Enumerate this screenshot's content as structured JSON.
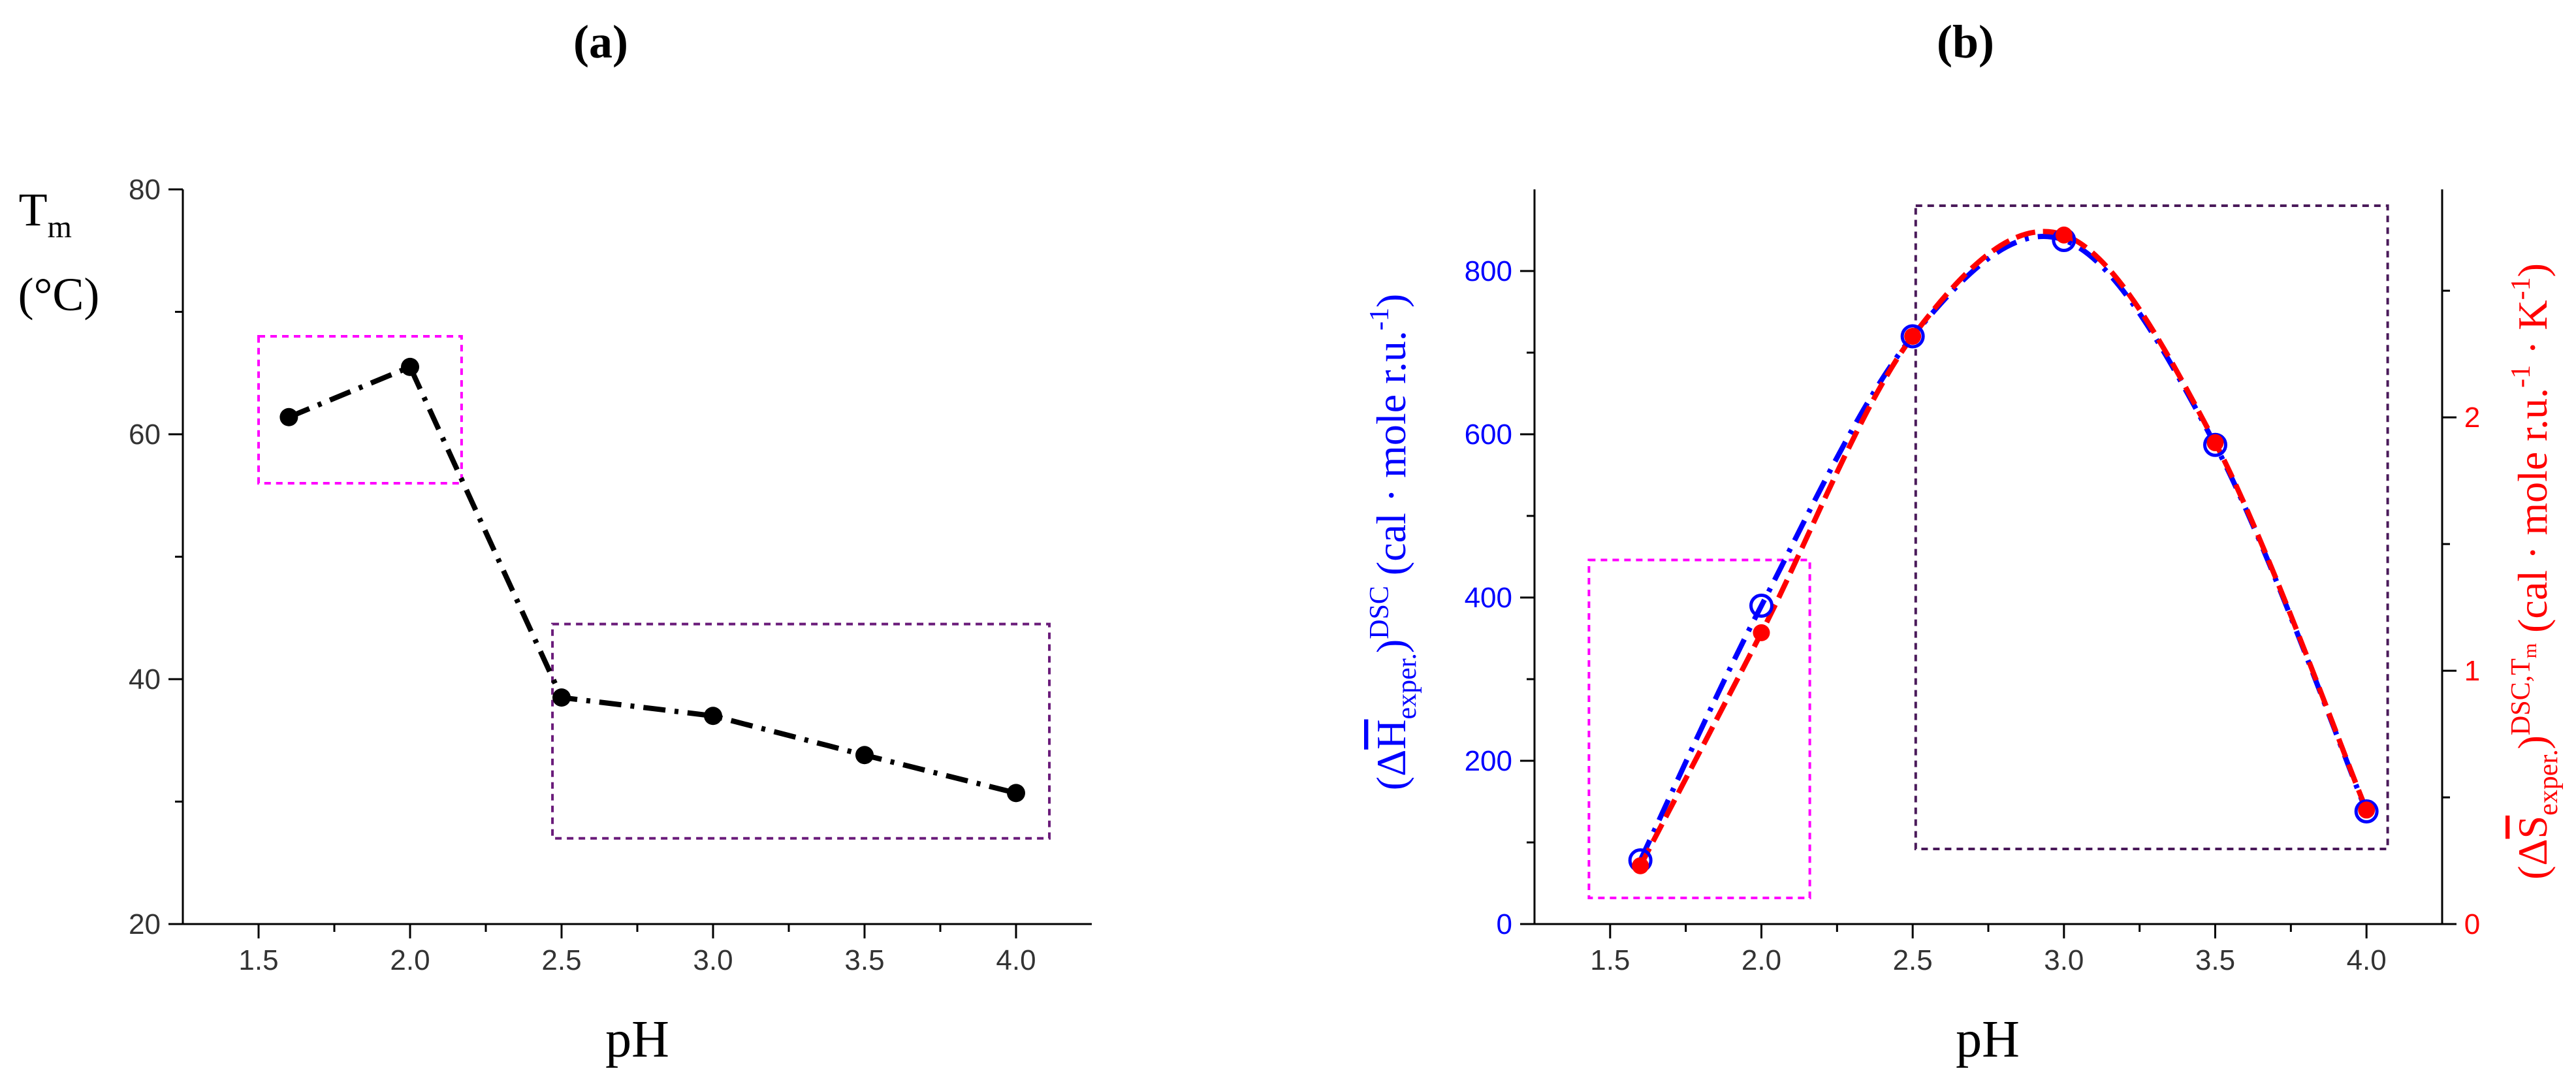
{
  "chart_data": [
    {
      "type": "line",
      "panel_label": "(a)",
      "xlabel": "pH",
      "ylabel_main": "T",
      "ylabel_sub": "m",
      "ylabel_unit": "(°C)",
      "xlim": [
        1.25,
        4.25
      ],
      "ylim": [
        20,
        80
      ],
      "xticks": [
        "1.5",
        "2.0",
        "2.5",
        "3.0",
        "3.5",
        "4.0"
      ],
      "yticks": [
        "20",
        "40",
        "60",
        "80"
      ],
      "series": [
        {
          "name": "Tm",
          "color": "#000000",
          "x": [
            1.6,
            2.0,
            2.5,
            3.0,
            3.5,
            4.0
          ],
          "y": [
            61.4,
            65.5,
            38.5,
            37.0,
            33.8,
            30.7
          ]
        }
      ],
      "highlight_boxes": [
        {
          "name": "low-ph-box",
          "color": "#ff00ff",
          "x_range": [
            1.5,
            2.17
          ],
          "y_range": [
            56,
            68
          ]
        },
        {
          "name": "high-ph-box",
          "color": "#6a1b7a",
          "x_range": [
            2.47,
            4.11
          ],
          "y_range": [
            27,
            44.5
          ]
        }
      ]
    },
    {
      "type": "line",
      "panel_label": "(b)",
      "xlabel": "pH",
      "ylabel_left": "(ΔH̄exper.)DSC (cal · mole r.u.-1)",
      "ylabel_left_parts": {
        "open": "(Δ",
        "symbol": "H",
        "sub": "exper.",
        "close": ")",
        "sup": "DSC",
        "unit": " (cal · mole r.u.",
        "unit_sup": "-1",
        "unit_close": ")"
      },
      "ylabel_right": "(ΔS̄exper.)DSC,Tm (cal · mole r.u.-1 · K-1)",
      "ylabel_right_parts": {
        "open": "(Δ",
        "symbol": "S",
        "sub": "exper.",
        "close": ")",
        "sup": "DSC,T",
        "sup_sub": "m",
        "unit": " (cal · mole r.u.",
        "unit_sup": "-1",
        "unit_mid": " · K",
        "unit_sup2": "-1",
        "unit_close": ")"
      },
      "xlim": [
        1.25,
        4.25
      ],
      "ylim_left": [
        0,
        900
      ],
      "ylim_right": [
        0,
        2.9
      ],
      "xticks": [
        "1.5",
        "2.0",
        "2.5",
        "3.0",
        "3.5",
        "4.0"
      ],
      "yticks_left": [
        "0",
        "200",
        "400",
        "600",
        "800"
      ],
      "yticks_right": [
        "0",
        "1",
        "2"
      ],
      "series": [
        {
          "name": "ΔH (DSC)",
          "color": "#0000ff",
          "axis": "left",
          "marker": "open-circle",
          "x": [
            1.6,
            2.0,
            2.5,
            3.0,
            3.5,
            4.0
          ],
          "y": [
            78,
            390,
            720,
            838,
            587,
            138
          ]
        },
        {
          "name": "ΔS (DSC,Tm)",
          "color": "#ff0000",
          "axis": "right",
          "marker": "filled-circle",
          "x": [
            1.6,
            2.0,
            2.5,
            3.0,
            3.5,
            4.0
          ],
          "y": [
            0.23,
            1.15,
            2.32,
            2.72,
            1.9,
            0.45
          ]
        }
      ],
      "highlight_boxes": [
        {
          "name": "low-ph-box",
          "color": "#ff00ff",
          "x_range": [
            1.43,
            2.16
          ],
          "y_range": [
            32,
            446
          ]
        },
        {
          "name": "high-ph-box",
          "color": "#4a1a5a",
          "x_range": [
            2.51,
            4.07
          ],
          "y_range": [
            92,
            880
          ]
        }
      ]
    }
  ]
}
